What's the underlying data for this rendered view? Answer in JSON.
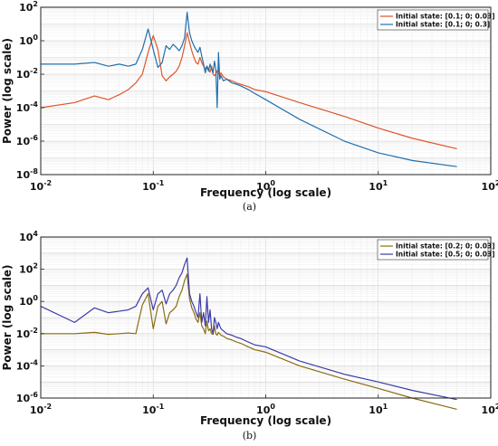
{
  "chart_data": [
    {
      "type": "line",
      "panel_caption": "(a)",
      "xlabel": "Frequency (log scale)",
      "ylabel": "Power (log scale)",
      "xscale": "log",
      "yscale": "log",
      "xlim": [
        0.01,
        100
      ],
      "ylim": [
        1e-08,
        100
      ],
      "x_ticks": [
        {
          "value": 0.01,
          "base": "10",
          "exp": "-2"
        },
        {
          "value": 0.1,
          "base": "10",
          "exp": "-1"
        },
        {
          "value": 1,
          "base": "10",
          "exp": "0"
        },
        {
          "value": 10,
          "base": "10",
          "exp": "1"
        },
        {
          "value": 100,
          "base": "10",
          "exp": "2"
        }
      ],
      "y_ticks": [
        {
          "value": 1e-08,
          "base": "10",
          "exp": "-8"
        },
        {
          "value": 1e-06,
          "base": "10",
          "exp": "-6"
        },
        {
          "value": 0.0001,
          "base": "10",
          "exp": "-4"
        },
        {
          "value": 0.01,
          "base": "10",
          "exp": "-2"
        },
        {
          "value": 1,
          "base": "10",
          "exp": "0"
        },
        {
          "value": 100,
          "base": "10",
          "exp": "2"
        }
      ],
      "grid": true,
      "legend_position": "top-right",
      "series": [
        {
          "name": "Initial state: [0.1; 0; 0.03]",
          "color": "#e0542a",
          "x": [
            0.01,
            0.02,
            0.03,
            0.04,
            0.05,
            0.06,
            0.07,
            0.08,
            0.09,
            0.1,
            0.11,
            0.12,
            0.13,
            0.14,
            0.15,
            0.16,
            0.17,
            0.18,
            0.19,
            0.2,
            0.21,
            0.22,
            0.23,
            0.24,
            0.25,
            0.26,
            0.27,
            0.28,
            0.29,
            0.3,
            0.31,
            0.32,
            0.33,
            0.34,
            0.35,
            0.36,
            0.37,
            0.38,
            0.39,
            0.4,
            0.42,
            0.45,
            0.5,
            0.55,
            0.6,
            0.7,
            0.8,
            1.0,
            2.0,
            5.0,
            10,
            20,
            50
          ],
          "y": [
            0.0001,
            0.0002,
            0.0005,
            0.0003,
            0.0006,
            0.0012,
            0.003,
            0.01,
            0.2,
            2.0,
            0.3,
            0.008,
            0.004,
            0.007,
            0.01,
            0.015,
            0.03,
            0.1,
            0.5,
            3.0,
            0.8,
            0.25,
            0.1,
            0.05,
            0.04,
            0.1,
            0.05,
            0.03,
            0.02,
            0.03,
            0.02,
            0.013,
            0.03,
            0.01,
            0.008,
            0.01,
            0.015,
            0.02,
            0.006,
            0.012,
            0.007,
            0.005,
            0.004,
            0.003,
            0.0025,
            0.0018,
            0.0012,
            0.0009,
            0.0002,
            3e-05,
            6e-06,
            1.5e-06,
            3.5e-07
          ]
        },
        {
          "name": "Initial state: [0.1; 0; 0.3]",
          "color": "#1f6fae",
          "x": [
            0.01,
            0.02,
            0.03,
            0.04,
            0.05,
            0.06,
            0.07,
            0.08,
            0.09,
            0.1,
            0.11,
            0.12,
            0.13,
            0.14,
            0.15,
            0.16,
            0.17,
            0.18,
            0.19,
            0.2,
            0.21,
            0.22,
            0.23,
            0.24,
            0.25,
            0.26,
            0.27,
            0.28,
            0.29,
            0.3,
            0.31,
            0.32,
            0.33,
            0.34,
            0.35,
            0.36,
            0.37,
            0.38,
            0.39,
            0.4,
            0.42,
            0.45,
            0.5,
            0.55,
            0.6,
            0.7,
            0.8,
            1.0,
            2.0,
            5.0,
            10,
            20,
            50
          ],
          "y": [
            0.04,
            0.04,
            0.05,
            0.03,
            0.04,
            0.03,
            0.04,
            0.3,
            5.0,
            0.3,
            0.025,
            0.05,
            0.5,
            0.3,
            0.6,
            0.4,
            0.25,
            0.5,
            1.5,
            50,
            3.0,
            1.0,
            0.5,
            0.3,
            0.2,
            0.4,
            0.12,
            0.04,
            0.012,
            0.03,
            0.015,
            0.04,
            0.02,
            0.012,
            0.06,
            0.02,
            0.0001,
            0.2,
            0.005,
            0.008,
            0.004,
            0.005,
            0.003,
            0.0025,
            0.002,
            0.0012,
            0.0007,
            0.0003,
            2e-05,
            1e-06,
            2e-07,
            7e-08,
            3e-08
          ]
        }
      ]
    },
    {
      "type": "line",
      "panel_caption": "(b)",
      "xlabel": "Frequency (log scale)",
      "ylabel": "Power (log scale)",
      "xscale": "log",
      "yscale": "log",
      "xlim": [
        0.01,
        100
      ],
      "ylim": [
        1e-06,
        10000
      ],
      "x_ticks": [
        {
          "value": 0.01,
          "base": "10",
          "exp": "-2"
        },
        {
          "value": 0.1,
          "base": "10",
          "exp": "-1"
        },
        {
          "value": 1,
          "base": "10",
          "exp": "0"
        },
        {
          "value": 10,
          "base": "10",
          "exp": "1"
        },
        {
          "value": 100,
          "base": "10",
          "exp": "2"
        }
      ],
      "y_ticks": [
        {
          "value": 1e-06,
          "base": "10",
          "exp": "-6"
        },
        {
          "value": 0.0001,
          "base": "10",
          "exp": "-4"
        },
        {
          "value": 0.01,
          "base": "10",
          "exp": "-2"
        },
        {
          "value": 1,
          "base": "10",
          "exp": "0"
        },
        {
          "value": 100,
          "base": "10",
          "exp": "2"
        },
        {
          "value": 10000,
          "base": "10",
          "exp": "4"
        }
      ],
      "grid": true,
      "legend_position": "top-right",
      "series": [
        {
          "name": "Initial state: [0.2; 0; 0.03]",
          "color": "#8a6d12",
          "x": [
            0.01,
            0.02,
            0.03,
            0.04,
            0.05,
            0.06,
            0.07,
            0.08,
            0.09,
            0.1,
            0.11,
            0.12,
            0.13,
            0.14,
            0.15,
            0.16,
            0.17,
            0.18,
            0.19,
            0.2,
            0.21,
            0.22,
            0.23,
            0.24,
            0.25,
            0.26,
            0.27,
            0.28,
            0.29,
            0.3,
            0.31,
            0.32,
            0.33,
            0.34,
            0.35,
            0.36,
            0.37,
            0.38,
            0.39,
            0.4,
            0.42,
            0.45,
            0.5,
            0.55,
            0.6,
            0.7,
            0.8,
            1.0,
            2.0,
            5.0,
            10,
            20,
            50
          ],
          "y": [
            0.01,
            0.01,
            0.012,
            0.009,
            0.01,
            0.011,
            0.01,
            0.6,
            3.0,
            0.02,
            0.5,
            1.0,
            0.04,
            0.2,
            0.3,
            0.5,
            2.0,
            5.0,
            20,
            50,
            1.5,
            0.4,
            0.2,
            0.08,
            0.05,
            0.2,
            0.03,
            0.02,
            0.01,
            0.06,
            0.015,
            0.02,
            0.01,
            0.009,
            0.03,
            0.01,
            0.008,
            0.012,
            0.01,
            0.008,
            0.007,
            0.005,
            0.004,
            0.003,
            0.0025,
            0.0015,
            0.001,
            0.0007,
            0.0001,
            1.5e-05,
            4e-06,
            1e-06,
            2e-07
          ]
        },
        {
          "name": "Initial state: [0.5; 0; 0.03]",
          "color": "#3c3ca8",
          "x": [
            0.01,
            0.02,
            0.03,
            0.04,
            0.05,
            0.06,
            0.07,
            0.08,
            0.09,
            0.1,
            0.11,
            0.12,
            0.13,
            0.14,
            0.15,
            0.16,
            0.17,
            0.18,
            0.19,
            0.2,
            0.21,
            0.22,
            0.23,
            0.24,
            0.25,
            0.26,
            0.27,
            0.28,
            0.29,
            0.3,
            0.31,
            0.32,
            0.33,
            0.34,
            0.35,
            0.36,
            0.37,
            0.38,
            0.39,
            0.4,
            0.42,
            0.45,
            0.5,
            0.55,
            0.6,
            0.7,
            0.8,
            1.0,
            2.0,
            5.0,
            10,
            20,
            50
          ],
          "y": [
            0.5,
            0.05,
            0.4,
            0.2,
            0.25,
            0.3,
            0.5,
            3.0,
            7.0,
            0.3,
            3.0,
            5.0,
            0.7,
            3.0,
            5.0,
            10,
            30,
            60,
            200,
            500,
            3.0,
            1.0,
            0.5,
            0.2,
            0.1,
            3.0,
            0.05,
            0.2,
            0.03,
            2.0,
            0.05,
            0.3,
            0.02,
            0.01,
            0.1,
            0.05,
            0.02,
            0.05,
            0.03,
            0.02,
            0.015,
            0.01,
            0.008,
            0.006,
            0.005,
            0.003,
            0.002,
            0.0015,
            0.0002,
            3e-05,
            1e-05,
            3e-06,
            8e-07
          ]
        }
      ]
    }
  ]
}
